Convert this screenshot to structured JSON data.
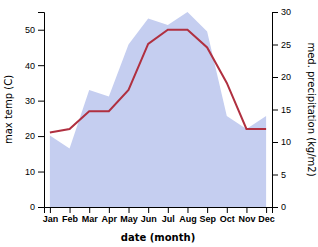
{
  "chart_data": {
    "type": "line",
    "xlabel": "date (month)",
    "ylabel": "max temp (C)",
    "y2label": "med. precipitation (kg/m2)",
    "categories": [
      "Jan",
      "Feb",
      "Mar",
      "Apr",
      "May",
      "Jun",
      "Jul",
      "Aug",
      "Sep",
      "Oct",
      "Nov",
      "Dec"
    ],
    "series": [
      {
        "type": "area",
        "axis": "y2",
        "color": "#c5cef0",
        "values": [
          11,
          9,
          18,
          17,
          25,
          29,
          28,
          30,
          27,
          14,
          12,
          14
        ]
      },
      {
        "type": "line",
        "color": "#b03040",
        "values": [
          21,
          22,
          27,
          27,
          33,
          46,
          50,
          50,
          45,
          35,
          22,
          22
        ]
      }
    ],
    "ylim": [
      0,
      55
    ],
    "yticks": [
      0,
      10,
      20,
      30,
      40,
      50
    ],
    "y2lim": [
      0,
      30
    ],
    "y2ticks": [
      0,
      5,
      10,
      15,
      20,
      25,
      30
    ],
    "grid": false
  }
}
